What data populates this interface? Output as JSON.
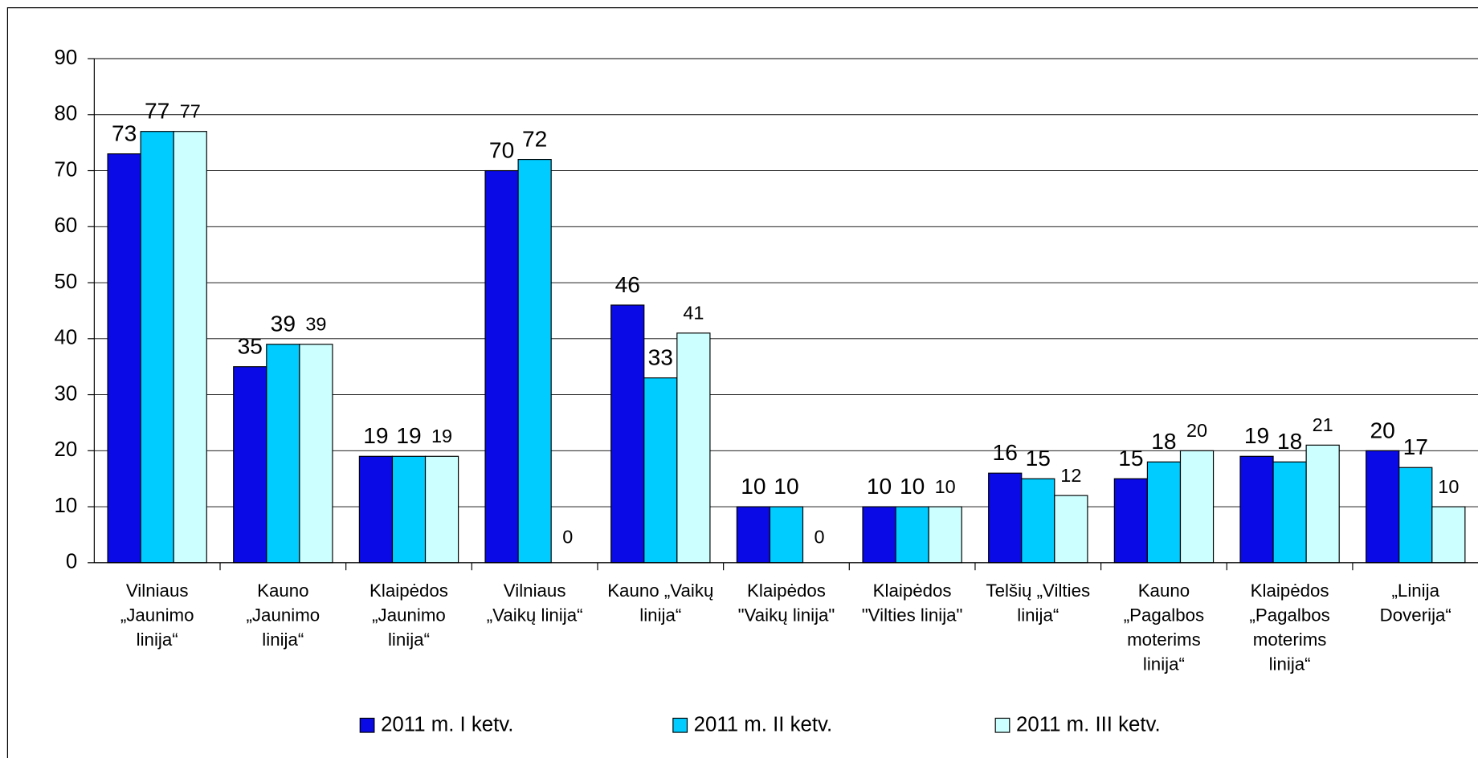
{
  "chart_data": {
    "type": "bar",
    "categories": [
      "Vilniaus „Jaunimo linija“",
      "Kauno „Jaunimo linija“",
      "Klaipėdos „Jaunimo linija“",
      "Vilniaus „Vaikų linija“",
      "Kauno „Vaikų linija“",
      "Klaipėdos \"Vaikų linija\"",
      "Klaipėdos \"Vilties linija\"",
      "Telšių „Vilties linija“",
      "Kauno „Pagalbos moterims linija“",
      "Klaipėdos „Pagalbos moterims linija“",
      "„Linija Doverija“"
    ],
    "series": [
      {
        "name": "2011 m. I ketv.",
        "color": "#0a0ae6",
        "values": [
          73,
          35,
          19,
          70,
          46,
          10,
          10,
          16,
          15,
          19,
          20
        ]
      },
      {
        "name": "2011 m. II ketv.",
        "color": "#00ccff",
        "values": [
          77,
          39,
          19,
          72,
          33,
          10,
          10,
          15,
          18,
          18,
          17
        ]
      },
      {
        "name": "2011 m. III ketv.",
        "color": "#ccffff",
        "values": [
          77,
          39,
          19,
          0,
          41,
          0,
          10,
          12,
          20,
          21,
          10
        ]
      }
    ],
    "ylim": [
      0,
      90
    ],
    "yticks": [
      0,
      10,
      20,
      30,
      40,
      50,
      60,
      70,
      80,
      90
    ],
    "grid": true,
    "legend": "bottom"
  }
}
